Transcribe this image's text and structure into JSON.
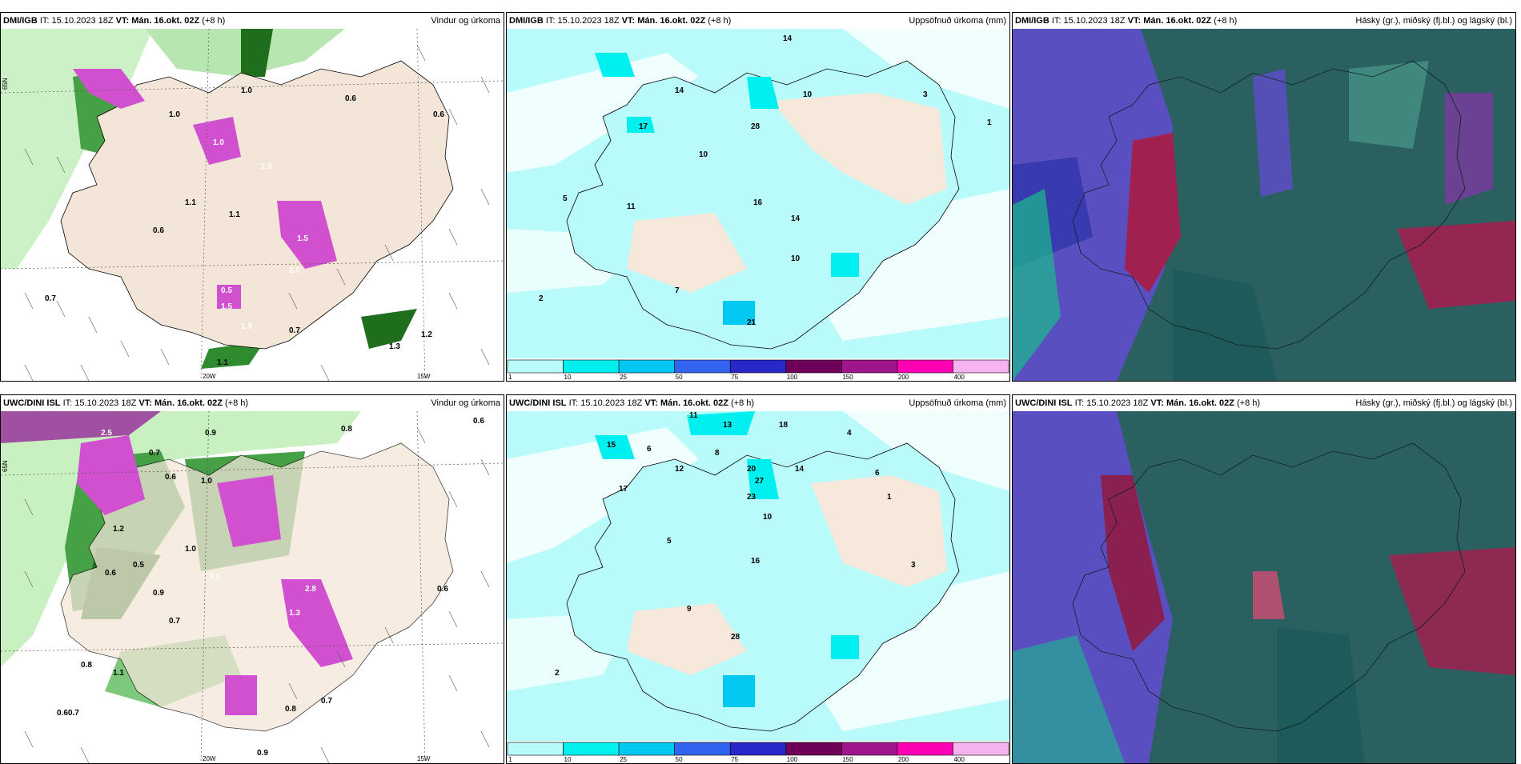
{
  "top": {
    "panel1": {
      "model": "DMI/IGB",
      "it_label": "IT:",
      "it": "15.10.2023 18Z",
      "vt_label": "VT:",
      "vt": "Mán. 16.okt. 02Z",
      "lead": "(+8 h)",
      "title": "Vindur og úrkoma",
      "values": [
        "1.0",
        "0.6",
        "0.6",
        "1.0",
        "1.0",
        "2.0",
        "1.1",
        "1.5",
        "2.0",
        "1.1",
        "0.6",
        "0.7",
        "0.5",
        "1.5",
        "1.8",
        "0.7",
        "1.2",
        "1.3",
        "1.1"
      ],
      "axis": {
        "lat": "65N",
        "lon1": "20W",
        "lon2": "15W"
      }
    },
    "panel2": {
      "model": "DMI/IGB",
      "it_label": "IT:",
      "it": "15.10.2023 18Z",
      "vt_label": "VT:",
      "vt": "Mán. 16.okt. 02Z",
      "lead": "(+8 h)",
      "title": "Uppsöfnuð úrkoma (mm)",
      "values": [
        "14",
        "14",
        "17",
        "10",
        "28",
        "10",
        "3",
        "1",
        "16",
        "11",
        "5",
        "14",
        "10",
        "7",
        "2",
        "21"
      ]
    },
    "panel3": {
      "model": "DMI/IGB",
      "it_label": "IT:",
      "it": "15.10.2023 18Z",
      "vt_label": "VT:",
      "vt": "Mán. 16.okt. 02Z",
      "lead": "(+8 h)",
      "title": "Hásky (gr.), miðský (fj.bl.) og lágský (bl.)"
    }
  },
  "bottom": {
    "panel1": {
      "model": "UWC/DINI ISL",
      "it_label": "IT:",
      "it": "15.10.2023 18Z",
      "vt_label": "VT:",
      "vt": "Mán. 16.okt. 02Z",
      "lead": "(+8 h)",
      "title": "Vindur og úrkoma",
      "values": [
        "0.6",
        "2.5",
        "0.8",
        "0.9",
        "0.7",
        "1.0",
        "0.6",
        "1.2",
        "0.5",
        "0.6",
        "1.0",
        "0.9",
        "3.1",
        "0.7",
        "2.8",
        "1.3",
        "0.6",
        "0.8",
        "1.1",
        "0.7",
        "0.60.7",
        "0.8",
        "0.9"
      ],
      "axis": {
        "lat": "65N",
        "lon1": "20W",
        "lon2": "15W"
      }
    },
    "panel2": {
      "model": "UWC/DINI ISL",
      "it_label": "IT:",
      "it": "15.10.2023 18Z",
      "vt_label": "VT:",
      "vt": "Mán. 16.okt. 02Z",
      "lead": "(+8 h)",
      "title": "Uppsöfnuð úrkoma (mm)",
      "values": [
        "11",
        "13",
        "18",
        "4",
        "15",
        "6",
        "17",
        "12",
        "8",
        "20",
        "27",
        "14",
        "23",
        "10",
        "6",
        "3",
        "1",
        "5",
        "9",
        "16",
        "28",
        "2"
      ]
    },
    "panel3": {
      "model": "UWC/DINI ISL",
      "it_label": "IT:",
      "it": "15.10.2023 18Z",
      "vt_label": "VT:",
      "vt": "Mán. 16.okt. 02Z",
      "lead": "(+8 h)",
      "title": "Hásky (gr.), miðský (fj.bl.) og lágský (bl.)"
    }
  },
  "colorbar": {
    "ticks": [
      "1",
      "10",
      "25",
      "50",
      "75",
      "100",
      "150",
      "200",
      "400"
    ],
    "colors": [
      "#b9fafa",
      "#00f0f0",
      "#00c8f0",
      "#3264f0",
      "#2828c8",
      "#6e005a",
      "#a0148c",
      "#ff00b4",
      "#f5b4f0"
    ]
  }
}
